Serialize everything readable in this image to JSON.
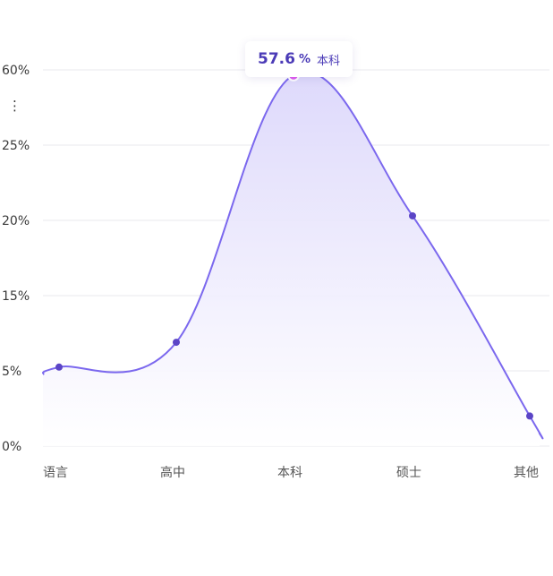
{
  "chart_data": {
    "type": "area",
    "categories": [
      "语言",
      "高中",
      "本科",
      "硕士",
      "其他"
    ],
    "values": [
      5.5,
      8.8,
      57.6,
      20.3,
      2.0
    ],
    "y_tick_labels": [
      "0%",
      "5%",
      "15%",
      "20%",
      "25%",
      "60%"
    ],
    "axis_break_symbol": "⋮",
    "grid": true,
    "colors": {
      "line": "#7b68ee",
      "point": "#5b45c6",
      "highlight_point": "#e05cf0",
      "fill_top": "#dcd7fb",
      "fill_bottom": "#ffffff"
    },
    "tooltip": {
      "category": "本科",
      "value": "57.6",
      "unit": "%",
      "label": "本科"
    }
  }
}
